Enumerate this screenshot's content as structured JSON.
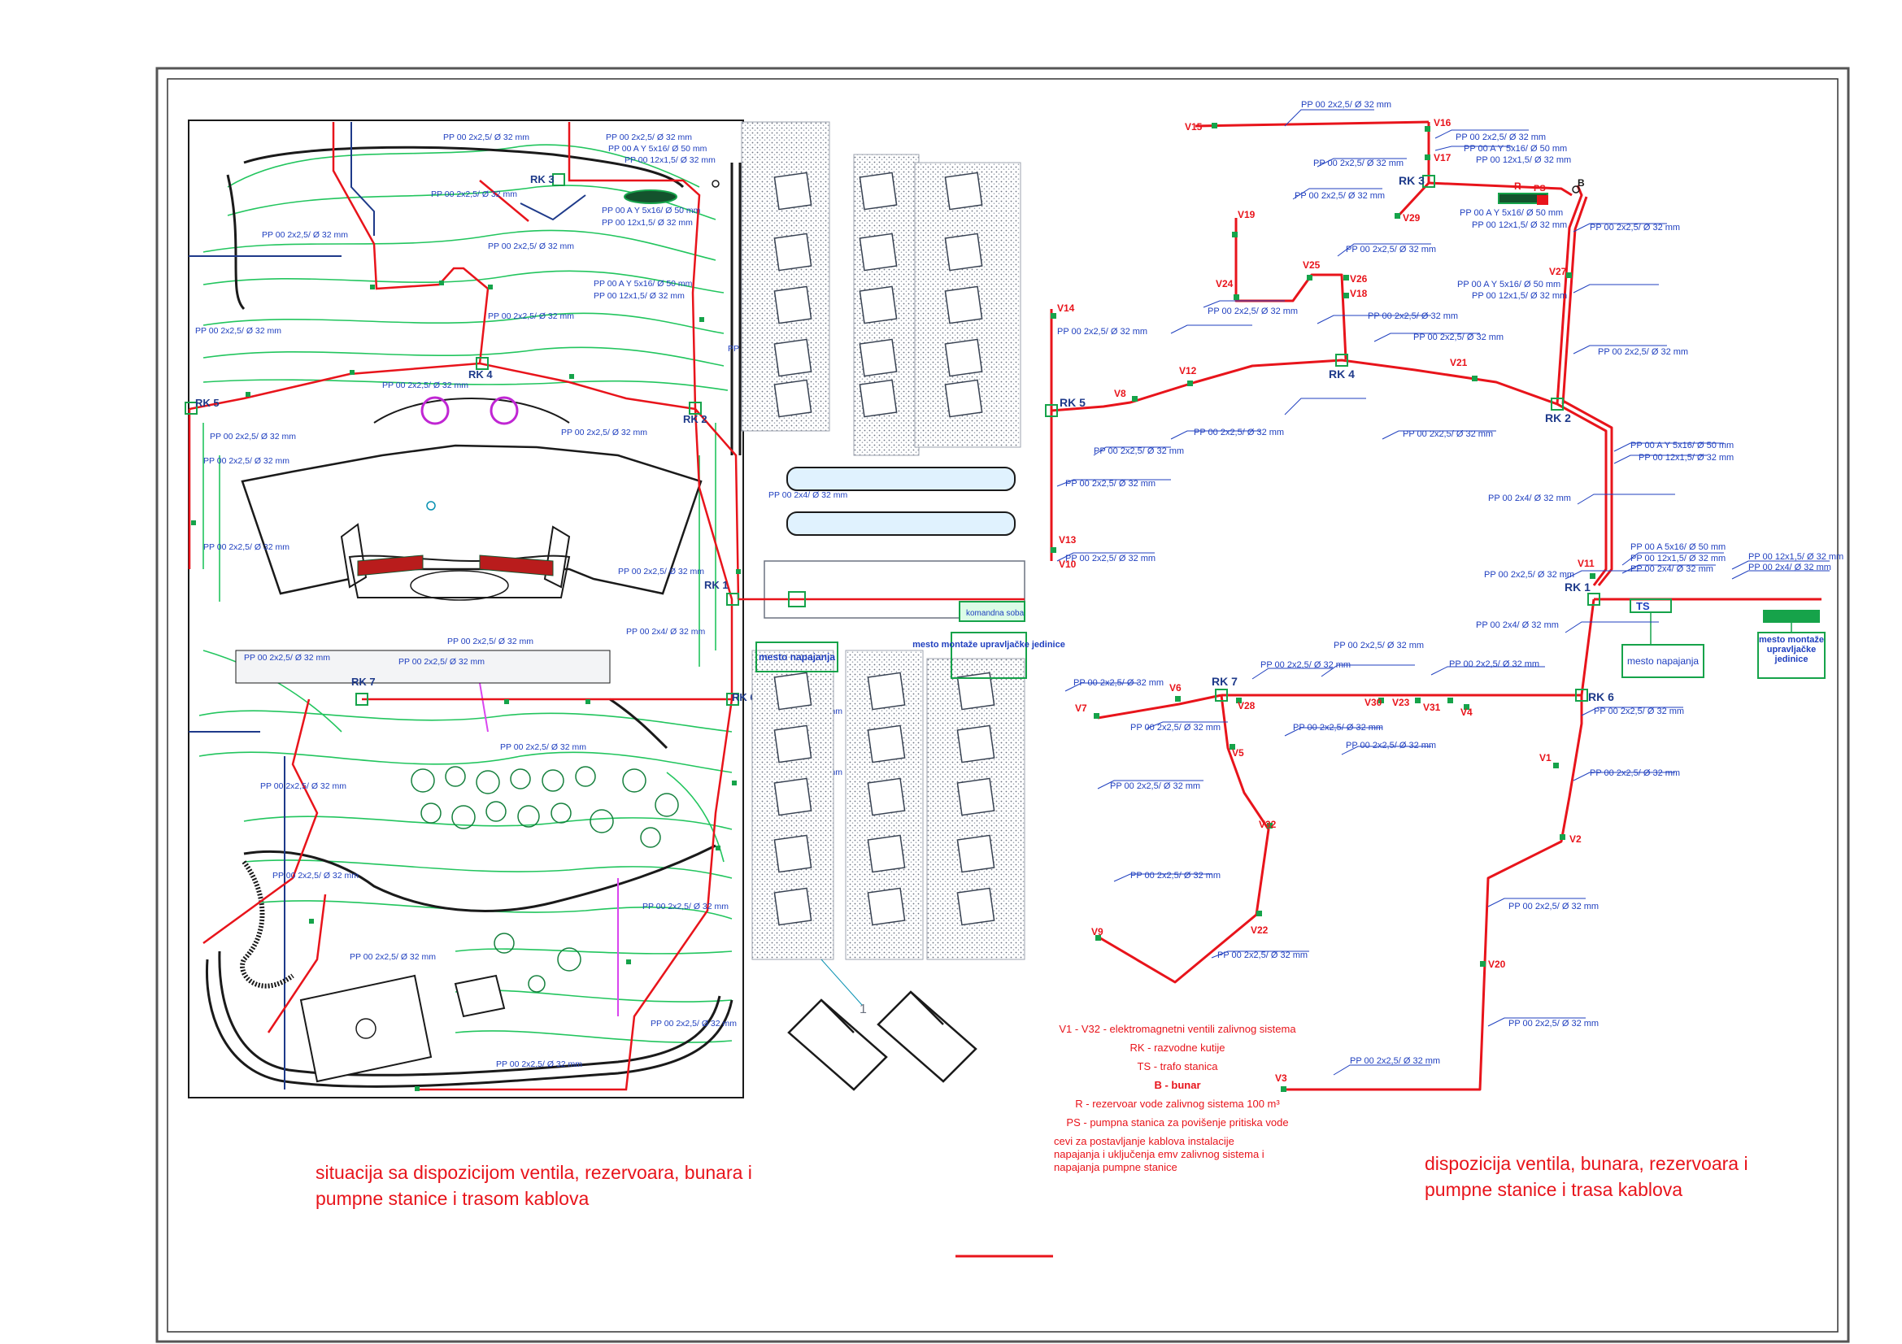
{
  "captions": {
    "left": "situacija sa dispozicijom ventila, rezervoara, bunara i pumpne stanice i trasom kablova",
    "right": "dispozicija ventila, bunara, rezervoara  i pumpne stanice i trasa kablova"
  },
  "legend": [
    {
      "text": "V1 - V32 - elektromagnetni ventili zalivnog sistema"
    },
    {
      "text": "RK - razvodne kutije"
    },
    {
      "text": "TS - trafo stanica"
    },
    {
      "text": "B - bunar"
    },
    {
      "text": "R - rezervoar vode zalivnog sistema 100 m³"
    },
    {
      "text": "PS - pumpna stanica za povišenje pritiska vode"
    },
    {
      "text": "cevi za postavljanje kablova instalacije napajanja i uključenja emv zalivnog sistema i napajanja pumpne stanice"
    }
  ],
  "colors": {
    "route": "#e8141b",
    "label": "#1f3fbf",
    "valve": "#1f9d2e",
    "terrain": "#22c55e"
  },
  "right_panel": {
    "nodes": [
      "RK 1",
      "RK 2",
      "RK 3",
      "RK 4",
      "RK 5",
      "RK 6",
      "RK 7"
    ],
    "valves": [
      "V1",
      "V2",
      "V3",
      "V4",
      "V5",
      "V6",
      "V7",
      "V8",
      "V9",
      "V10",
      "V11",
      "V12",
      "V13",
      "V14",
      "V15",
      "V16",
      "V17",
      "V18",
      "V19",
      "V20",
      "V21",
      "V22",
      "V23",
      "V24",
      "V25",
      "V26",
      "V27",
      "V28",
      "V29",
      "V30",
      "V31",
      "V32"
    ],
    "symbols": {
      "rezervoar": "R",
      "pumpna_stanica": "PS",
      "bunar": "B",
      "trafo": "TS"
    },
    "boxes": {
      "napajanje": "mesto napajanja",
      "upravljanje": "mesto montaže upravljačke jedinice"
    },
    "cable_labels": {
      "main": "PP 00 2x2,5/ Ø 32 mm",
      "ay50": "PP 00 A Y 5x16/ Ø 50 mm",
      "c12": "PP 00 12x1,5/ Ø 32 mm",
      "c2x4": "PP 00 2x4/ Ø 32 mm",
      "a5x16": "PP 00 A 5x16/ Ø 50 mm"
    }
  },
  "left_panel": {
    "nodes": [
      "RK 1",
      "RK 2",
      "RK 3",
      "RK 4",
      "RK 5",
      "RK 6",
      "RK 7"
    ],
    "boxes": {
      "napajanje": "mesto napajanja",
      "upravljanje": "mesto montaže upravljačke jedinice",
      "komandna": "komandna soba"
    },
    "building_number": "1"
  }
}
